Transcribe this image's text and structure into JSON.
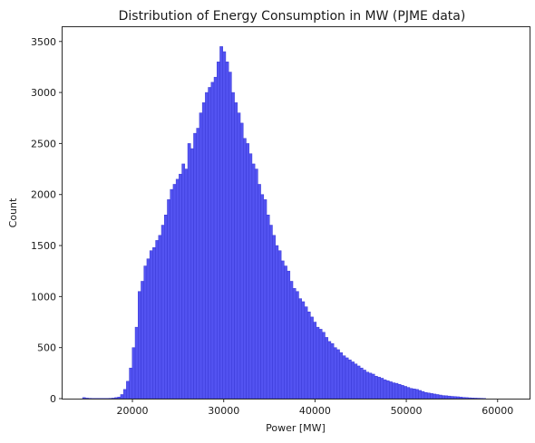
{
  "chart_data": {
    "type": "histogram",
    "title": "Distribution of Energy Consumption in MW (PJME data)",
    "xlabel": "Power [MW]",
    "ylabel": "Count",
    "xlim": [
      12350,
      63500
    ],
    "ylim": [
      0,
      3640
    ],
    "xticks": [
      20000,
      30000,
      40000,
      50000,
      60000
    ],
    "xtick_labels": [
      "20000",
      "30000",
      "40000",
      "50000",
      "60000"
    ],
    "yticks": [
      0,
      500,
      1000,
      1500,
      2000,
      2500,
      3000,
      3500
    ],
    "ytick_labels": [
      "0",
      "500",
      "1000",
      "1500",
      "2000",
      "2500",
      "3000",
      "3500"
    ],
    "grid": false,
    "bar_color": "#4a4af0",
    "bar_edge_color": "#3a3ad6",
    "bar_opacity": 0.95,
    "bins": {
      "start": 14540,
      "width": 320,
      "counts": [
        10,
        5,
        3,
        2,
        2,
        2,
        2,
        2,
        2,
        3,
        5,
        10,
        15,
        40,
        90,
        170,
        300,
        500,
        700,
        1050,
        1150,
        1300,
        1370,
        1450,
        1480,
        1550,
        1600,
        1700,
        1800,
        1950,
        2050,
        2100,
        2150,
        2200,
        2300,
        2250,
        2500,
        2450,
        2600,
        2650,
        2800,
        2900,
        3000,
        3050,
        3100,
        3150,
        3300,
        3450,
        3400,
        3300,
        3200,
        3000,
        2900,
        2800,
        2700,
        2550,
        2500,
        2400,
        2300,
        2250,
        2100,
        2000,
        1950,
        1800,
        1700,
        1600,
        1500,
        1450,
        1350,
        1300,
        1250,
        1150,
        1080,
        1050,
        980,
        950,
        900,
        850,
        800,
        750,
        700,
        680,
        650,
        600,
        560,
        540,
        500,
        480,
        450,
        420,
        400,
        380,
        360,
        340,
        320,
        300,
        280,
        260,
        250,
        240,
        220,
        210,
        200,
        185,
        175,
        165,
        155,
        150,
        140,
        130,
        120,
        110,
        100,
        95,
        90,
        80,
        70,
        60,
        55,
        50,
        45,
        40,
        35,
        30,
        28,
        25,
        22,
        20,
        18,
        15,
        12,
        10,
        8,
        6,
        5,
        4,
        3,
        2
      ]
    }
  }
}
